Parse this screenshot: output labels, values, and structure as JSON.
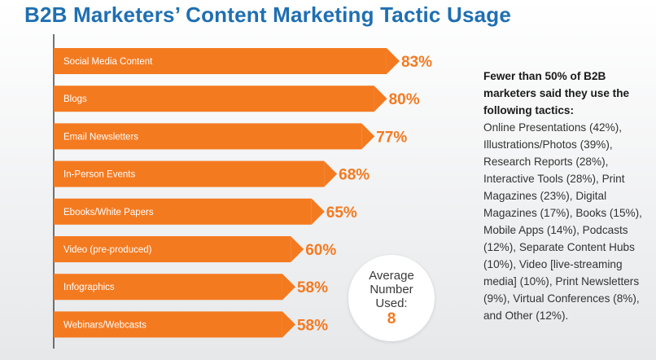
{
  "chart_data": {
    "type": "bar",
    "orientation": "horizontal",
    "title": "B2B Marketers’ Content Marketing Tactic Usage",
    "categories": [
      "Social Media Content",
      "Blogs",
      "Email Newsletters",
      "In-Person Events",
      "Ebooks/White Papers",
      "Video (pre-produced)",
      "Infographics",
      "Webinars/Webcasts"
    ],
    "values": [
      83,
      80,
      77,
      68,
      65,
      60,
      58,
      58
    ],
    "value_labels": [
      "83%",
      "80%",
      "77%",
      "68%",
      "65%",
      "60%",
      "58%",
      "58%"
    ],
    "xlim": [
      0,
      100
    ],
    "grid": false,
    "legend": "none",
    "colors": {
      "bar": "#f47a20",
      "title": "#1f6fb2",
      "value_text": "#f47a20"
    }
  },
  "average": {
    "label": "Average Number Used:",
    "value": "8"
  },
  "side_note": {
    "heading": "Fewer than 50% of B2B marketers said they use the following tactics:",
    "body": "Online Presentations (42%), Illustrations/Photos (39%), Research Reports (28%), Interactive Tools (28%), Print Magazines (23%), Digital Magazines (17%), Books (15%), Mobile Apps (14%), Podcasts (12%), Separate Content Hubs (10%), Video [live-streaming media] (10%), Print Newsletters (9%), Virtual Conferences (8%), and Other (12%)."
  }
}
